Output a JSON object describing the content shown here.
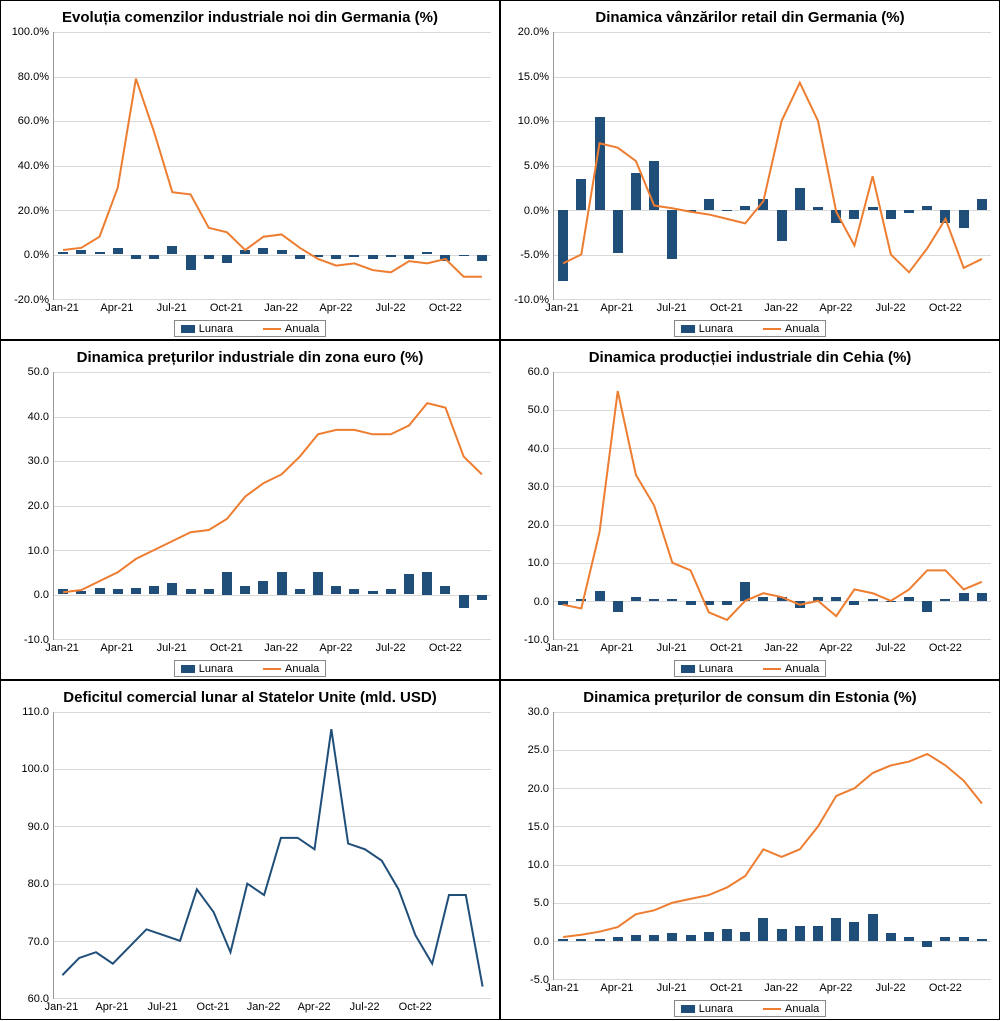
{
  "xlabels": [
    "Jan-21",
    "Apr-21",
    "Jul-21",
    "Oct-21",
    "Jan-22",
    "Apr-22",
    "Jul-22",
    "Oct-22"
  ],
  "legend": {
    "bar": "Lunara",
    "line": "Anuala"
  },
  "colors": {
    "bar": "#1f4e79",
    "line_orange": "#ed7d31",
    "line_blue": "#1f4e79",
    "grid": "#d9d9d9"
  },
  "charts": [
    {
      "id": "c1",
      "title": "Evoluția comenzilor industriale noi din Germania (%)",
      "ymin": -20,
      "ymax": 100,
      "ystep": 20,
      "ysuffix": ".0%",
      "bars": [
        1,
        2,
        1,
        3,
        -2,
        -2,
        4,
        -7,
        -2,
        -4,
        2,
        3,
        2,
        -2,
        -1,
        -2,
        -1,
        -2,
        -1,
        -2,
        1,
        -3,
        0,
        -3
      ],
      "line": {
        "color": "line_orange",
        "vals": [
          2,
          3,
          8,
          30,
          79,
          55,
          28,
          27,
          12,
          10,
          2,
          8,
          9,
          3,
          -2,
          -5,
          -4,
          -7,
          -8,
          -3,
          -4,
          -2,
          -10,
          -10
        ]
      },
      "has_legend": true
    },
    {
      "id": "c2",
      "title": "Dinamica vânzărilor retail din Germania (%)",
      "ymin": -10,
      "ymax": 20,
      "ystep": 5,
      "ysuffix": ".0%",
      "bars": [
        -8,
        3.5,
        10.5,
        -4.8,
        4.2,
        5.5,
        -5.5,
        -0.2,
        1.2,
        -0.1,
        0.5,
        1.2,
        -3.5,
        2.5,
        0.3,
        -1.5,
        -1,
        0.3,
        -1,
        -0.3,
        0.5,
        -1.5,
        -2,
        1.2
      ],
      "line": {
        "color": "line_orange",
        "vals": [
          -6,
          -5,
          7.5,
          7,
          5.5,
          0.5,
          0.2,
          -0.2,
          -0.5,
          -1,
          -1.5,
          1,
          10,
          14.3,
          10,
          -0.2,
          -4,
          3.8,
          -5,
          -7,
          -4.3,
          -1,
          -6.5,
          -5.5
        ]
      },
      "has_legend": true
    },
    {
      "id": "c3",
      "title": "Dinamica prețurilor industriale din zona euro (%)",
      "ymin": -10,
      "ymax": 50,
      "ystep": 10,
      "ysuffix": ".0",
      "bars": [
        1.2,
        0.8,
        1.5,
        1.2,
        1.5,
        1.8,
        2.5,
        1.2,
        1.2,
        5,
        2,
        3,
        5,
        1.2,
        5,
        2,
        1.2,
        0.8,
        1.2,
        4.5,
        5,
        1.8,
        -3,
        -1.2
      ],
      "line": {
        "color": "line_orange",
        "vals": [
          0.5,
          1,
          3,
          5,
          8,
          10,
          12,
          14,
          14.5,
          17,
          22,
          25,
          27,
          31,
          36,
          37,
          37,
          36,
          36,
          38,
          43,
          42,
          31,
          27
        ]
      },
      "has_legend": true
    },
    {
      "id": "c4",
      "title": "Dinamica producției industriale din Cehia (%)",
      "ymin": -10,
      "ymax": 60,
      "ystep": 10,
      "ysuffix": ".0",
      "bars": [
        -1,
        0.5,
        2.5,
        -3,
        1,
        0.5,
        0.5,
        -1,
        -1,
        -1,
        5,
        1,
        1,
        -2,
        1,
        1,
        -1,
        0.5,
        0,
        1,
        -3,
        0.5,
        2,
        2
      ],
      "line": {
        "color": "line_orange",
        "vals": [
          -1,
          -2,
          18,
          55,
          33,
          25,
          10,
          8,
          -3,
          -5,
          0,
          2,
          1,
          -1,
          0,
          -4,
          3,
          2,
          0,
          3,
          8,
          8,
          3,
          5
        ]
      },
      "has_legend": true
    },
    {
      "id": "c5",
      "title": "Deficitul comercial lunar al Statelor Unite (mld. USD)",
      "ymin": 60,
      "ymax": 110,
      "ystep": 10,
      "ysuffix": ".0",
      "bars": null,
      "line": {
        "color": "line_blue",
        "vals": [
          64,
          67,
          68,
          66,
          69,
          72,
          71,
          70,
          79,
          75,
          68,
          80,
          78,
          88,
          88,
          86,
          107,
          87,
          86,
          84,
          79,
          71,
          66,
          78,
          78,
          62
        ]
      },
      "has_legend": false
    },
    {
      "id": "c6",
      "title": "Dinamica prețurilor de consum din Estonia (%)",
      "ymin": -5,
      "ymax": 30,
      "ystep": 5,
      "ysuffix": ".0",
      "bars": [
        0.2,
        0.3,
        0.3,
        0.5,
        0.8,
        0.8,
        1,
        0.8,
        1.2,
        1.5,
        1.2,
        3,
        1.5,
        2,
        2,
        3,
        2.5,
        3.5,
        1,
        0.5,
        -0.8,
        0.5,
        0.5,
        0.3
      ],
      "line": {
        "color": "line_orange",
        "vals": [
          0.5,
          0.8,
          1.2,
          1.8,
          3.5,
          4,
          5,
          5.5,
          6,
          7,
          8.5,
          12,
          11,
          12,
          15,
          19,
          20,
          22,
          23,
          23.5,
          24.5,
          23,
          21,
          18
        ]
      },
      "has_legend": true
    }
  ]
}
